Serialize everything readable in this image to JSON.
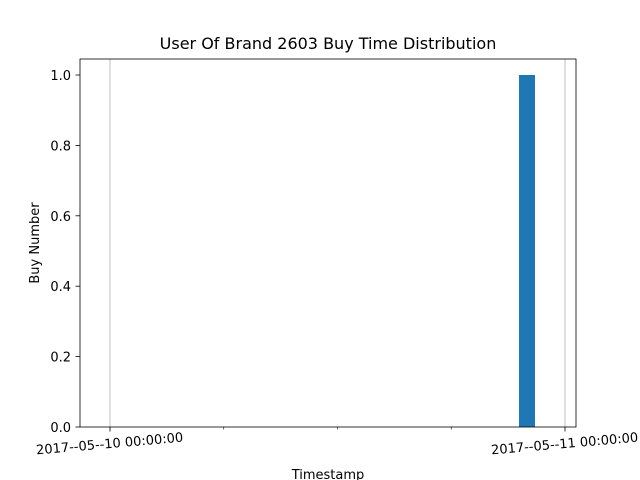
{
  "chart_data": {
    "type": "bar",
    "title": "User Of Brand 2603 Buy Time Distribution",
    "xlabel": "Timestamp",
    "ylabel": "Buy Number",
    "x_ticks": [
      "2017--05--10 00:00:00",
      "2017--05--11 00:00:00"
    ],
    "y_ticks": [
      "0.0",
      "0.2",
      "0.4",
      "0.6",
      "0.8",
      "1.0"
    ],
    "ylim": [
      0,
      1.05
    ],
    "grid": "vertical at major x ticks",
    "legend": "none",
    "bars": [
      {
        "x": "2017-05-10 21:00",
        "value": 1
      }
    ],
    "bar_color": "#1f77b4"
  }
}
